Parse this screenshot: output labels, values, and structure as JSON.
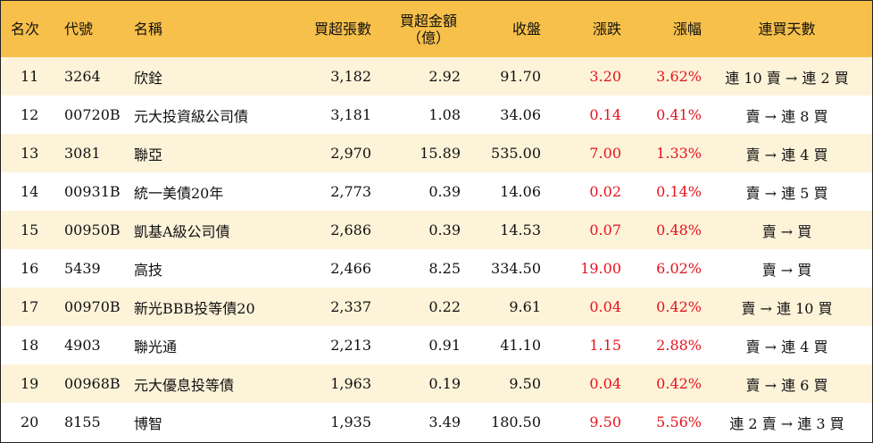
{
  "header": {
    "rank": "名次",
    "code": "代號",
    "name": "名稱",
    "net_buy_shares": "買超張數",
    "net_buy_amount_line1": "買超金額",
    "net_buy_amount_line2": "（億）",
    "close": "收盤",
    "change": "漲跌",
    "change_pct": "漲幅",
    "consecutive_days": "連買天數"
  },
  "rows": [
    {
      "rank": "11",
      "code": "3264",
      "name": "欣銓",
      "shares": "3,182",
      "amount": "2.92",
      "close": "91.70",
      "change": "3.20",
      "pct": "3.62%",
      "days": "連 10 賣 → 連 2 買"
    },
    {
      "rank": "12",
      "code": "00720B",
      "name": "元大投資級公司債",
      "shares": "3,181",
      "amount": "1.08",
      "close": "34.06",
      "change": "0.14",
      "pct": "0.41%",
      "days": "賣 → 連 8 買"
    },
    {
      "rank": "13",
      "code": "3081",
      "name": "聯亞",
      "shares": "2,970",
      "amount": "15.89",
      "close": "535.00",
      "change": "7.00",
      "pct": "1.33%",
      "days": "賣 → 連 4 買"
    },
    {
      "rank": "14",
      "code": "00931B",
      "name": "統一美債20年",
      "shares": "2,773",
      "amount": "0.39",
      "close": "14.06",
      "change": "0.02",
      "pct": "0.14%",
      "days": "賣 → 連 5 買"
    },
    {
      "rank": "15",
      "code": "00950B",
      "name": "凱基A級公司債",
      "shares": "2,686",
      "amount": "0.39",
      "close": "14.53",
      "change": "0.07",
      "pct": "0.48%",
      "days": "賣 → 買"
    },
    {
      "rank": "16",
      "code": "5439",
      "name": "高技",
      "shares": "2,466",
      "amount": "8.25",
      "close": "334.50",
      "change": "19.00",
      "pct": "6.02%",
      "days": "賣 → 買"
    },
    {
      "rank": "17",
      "code": "00970B",
      "name": "新光BBB投等債20",
      "shares": "2,337",
      "amount": "0.22",
      "close": "9.61",
      "change": "0.04",
      "pct": "0.42%",
      "days": "賣 → 連 10 買"
    },
    {
      "rank": "18",
      "code": "4903",
      "name": "聯光通",
      "shares": "2,213",
      "amount": "0.91",
      "close": "41.10",
      "change": "1.15",
      "pct": "2.88%",
      "days": "賣 → 連 4 買"
    },
    {
      "rank": "19",
      "code": "00968B",
      "name": "元大優息投等債",
      "shares": "1,963",
      "amount": "0.19",
      "close": "9.50",
      "change": "0.04",
      "pct": "0.42%",
      "days": "賣 → 連 6 買"
    },
    {
      "rank": "20",
      "code": "8155",
      "name": "博智",
      "shares": "1,935",
      "amount": "3.49",
      "close": "180.50",
      "change": "9.50",
      "pct": "5.56%",
      "days": "連 2 賣 → 連 3 買"
    }
  ],
  "colors": {
    "header_bg": "#f7c04a",
    "stripe_bg": "#fdf3d9",
    "up_red": "#e5131d"
  }
}
